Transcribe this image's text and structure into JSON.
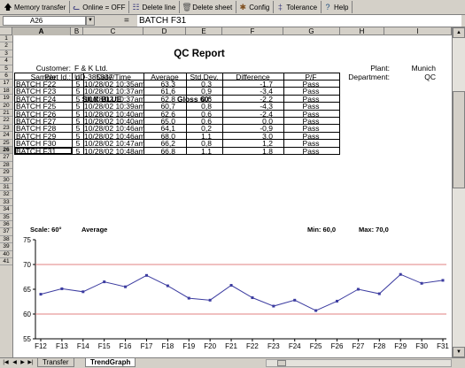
{
  "toolbar": {
    "buttons": [
      {
        "label": "Memory transfer",
        "icon": "up-arrow-icon"
      },
      {
        "label": "Online = OFF",
        "icon": "plug-icon"
      },
      {
        "label": "Delete line",
        "icon": "delete-line-icon"
      },
      {
        "label": "Delete sheet",
        "icon": "trash-icon"
      },
      {
        "label": "Config",
        "icon": "wrench-icon"
      },
      {
        "label": "Tolerance",
        "icon": "tolerance-icon"
      },
      {
        "label": "Help",
        "icon": "help-icon"
      }
    ]
  },
  "formula_bar": {
    "cell_ref": "A26",
    "equals": "=",
    "value": "BATCH F31"
  },
  "columns": [
    "A",
    "B",
    "C",
    "D",
    "E",
    "F",
    "G",
    "H",
    "I"
  ],
  "active_column": "A",
  "rows": [
    "1",
    "2",
    "3",
    "4",
    "5",
    "6",
    "17",
    "18",
    "19",
    "20",
    "21",
    "22",
    "23",
    "24",
    "25",
    "26",
    "27",
    "28",
    "29",
    "30",
    "31",
    "32",
    "33",
    "34",
    "35",
    "36",
    "37",
    "38",
    "39",
    "40",
    "41"
  ],
  "active_row": "26",
  "report": {
    "title": "QC Report",
    "customer_label": "Customer:",
    "customer_value": "F & K Ltd.",
    "part_label": "Part Id.:",
    "part_value": "UD-385337",
    "plant_label": "Plant:",
    "plant_value": "Munich",
    "department_label": "Department:",
    "department_value": "QC",
    "color_name": "SILK BLUE",
    "gloss": "Gloss 60°"
  },
  "table": {
    "headers": [
      "Sample",
      "n",
      "Date/Time",
      "Average",
      "Std.Dev.",
      "Difference",
      "P/F"
    ],
    "rows": [
      [
        "BATCH F22",
        "5",
        "10/28/02 10:35am",
        "63,3",
        "0,3",
        "-1,7",
        "Pass"
      ],
      [
        "BATCH F23",
        "5",
        "10/28/02 10:37am",
        "61,6",
        "0,9",
        "-3,4",
        "Pass"
      ],
      [
        "BATCH F24",
        "5",
        "10/28/02 10:37am",
        "62,8",
        "0,6",
        "-2,2",
        "Pass"
      ],
      [
        "BATCH F25",
        "5",
        "10/28/02 10:39am",
        "60,7",
        "0,8",
        "-4,3",
        "Pass"
      ],
      [
        "BATCH F26",
        "5",
        "10/28/02 10:40am",
        "62,6",
        "0,6",
        "-2,4",
        "Pass"
      ],
      [
        "BATCH F27",
        "5",
        "10/28/02 10:40am",
        "65,0",
        "0,6",
        "0,0",
        "Pass"
      ],
      [
        "BATCH F28",
        "5",
        "10/28/02 10:46am",
        "64,1",
        "0,2",
        "-0,9",
        "Pass"
      ],
      [
        "BATCH F29",
        "5",
        "10/28/02 10:46am",
        "68,0",
        "1,1",
        "3,0",
        "Pass"
      ],
      [
        "BATCH F30",
        "5",
        "10/28/02 10:47am",
        "66,2",
        "0,8",
        "1,2",
        "Pass"
      ],
      [
        "BATCH F31",
        "5",
        "10/28/02 10:48am",
        "66,8",
        "1,1",
        "1,8",
        "Pass"
      ]
    ]
  },
  "trend": {
    "scale_label": "Scale:  60°",
    "average_label": "Average",
    "min_label": "Min:  60,0",
    "max_label": "Max:  70,0"
  },
  "chart_data": {
    "type": "line",
    "categories": [
      "F12",
      "F13",
      "F14",
      "F15",
      "F16",
      "F17",
      "F18",
      "F19",
      "F20",
      "F21",
      "F22",
      "F23",
      "F24",
      "F25",
      "F26",
      "F27",
      "F28",
      "F29",
      "F30",
      "F31"
    ],
    "values": [
      64.0,
      65.1,
      64.5,
      66.5,
      65.5,
      67.8,
      65.7,
      63.2,
      62.8,
      65.8,
      63.3,
      61.6,
      62.8,
      60.7,
      62.6,
      65.0,
      64.1,
      68.0,
      66.2,
      66.8
    ],
    "yticks": [
      55,
      60,
      65,
      70,
      75
    ],
    "ylim": [
      55,
      75
    ],
    "limit_lines": [
      60,
      70
    ],
    "line_color": "#3c3ca0",
    "limit_color": "#e08080"
  },
  "sheets": {
    "tabs": [
      "Transfer",
      "TrendGraph"
    ],
    "active": "TrendGraph"
  }
}
